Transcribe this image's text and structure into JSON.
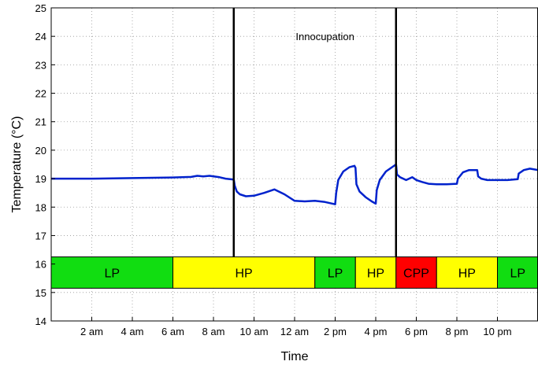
{
  "chart_data": {
    "type": "line",
    "title": "",
    "xlabel": "Time",
    "ylabel": "Temperature (°C)",
    "xlim": [
      0,
      24
    ],
    "ylim": [
      14,
      25
    ],
    "grid": true,
    "x_ticks": [
      {
        "value": 2,
        "label": "2 am"
      },
      {
        "value": 4,
        "label": "4 am"
      },
      {
        "value": 6,
        "label": "6 am"
      },
      {
        "value": 8,
        "label": "8 am"
      },
      {
        "value": 10,
        "label": "10 am"
      },
      {
        "value": 12,
        "label": "12 am"
      },
      {
        "value": 14,
        "label": "2 pm"
      },
      {
        "value": 16,
        "label": "4 pm"
      },
      {
        "value": 18,
        "label": "6 pm"
      },
      {
        "value": 20,
        "label": "8 pm"
      },
      {
        "value": 22,
        "label": "10 pm"
      }
    ],
    "y_ticks": [
      14,
      15,
      16,
      17,
      18,
      19,
      20,
      21,
      22,
      23,
      24,
      25
    ],
    "series": [
      {
        "color": "#0022cc",
        "x": [
          0,
          2,
          4,
          6,
          6.9,
          7.2,
          7.5,
          7.8,
          8.3,
          8.6,
          9.0,
          9.05,
          9.15,
          9.3,
          9.6,
          10.0,
          10.5,
          11.0,
          11.5,
          12.0,
          12.5,
          13.0,
          13.5,
          14.0,
          14.05,
          14.15,
          14.4,
          14.7,
          14.95,
          15.0,
          15.05,
          15.2,
          15.5,
          15.8,
          16.0,
          16.05,
          16.2,
          16.5,
          16.8,
          17.0,
          17.05,
          17.2,
          17.5,
          17.8,
          18.0,
          18.3,
          18.6,
          19.0,
          19.5,
          20.0,
          20.05,
          20.3,
          20.6,
          21.0,
          21.05,
          21.2,
          21.5,
          22.0,
          22.5,
          23.0,
          23.05,
          23.3,
          23.6,
          24.0
        ],
        "y": [
          19.0,
          19.0,
          19.02,
          19.04,
          19.06,
          19.1,
          19.08,
          19.1,
          19.05,
          19.0,
          18.97,
          18.75,
          18.55,
          18.45,
          18.38,
          18.4,
          18.5,
          18.62,
          18.45,
          18.22,
          18.2,
          18.22,
          18.18,
          18.1,
          18.5,
          18.95,
          19.25,
          19.4,
          19.45,
          19.38,
          18.8,
          18.55,
          18.35,
          18.2,
          18.12,
          18.6,
          18.95,
          19.25,
          19.4,
          19.5,
          19.15,
          19.05,
          18.95,
          19.05,
          18.95,
          18.88,
          18.82,
          18.8,
          18.8,
          18.82,
          19.0,
          19.22,
          19.3,
          19.3,
          19.08,
          19.0,
          18.95,
          18.95,
          18.95,
          18.98,
          19.18,
          19.3,
          19.35,
          19.3
        ]
      }
    ],
    "vertical_lines": [
      9.0,
      17.0
    ],
    "annotation": {
      "text": "Innocupation",
      "x": 13.5,
      "y": 24.0
    },
    "bands": {
      "y_low": 15.15,
      "y_high": 16.25,
      "segments": [
        {
          "start": 0,
          "end": 6,
          "label": "LP",
          "color": "#11dd11"
        },
        {
          "start": 6,
          "end": 13,
          "label": "HP",
          "color": "#ffff00"
        },
        {
          "start": 13,
          "end": 15,
          "label": "LP",
          "color": "#11dd11"
        },
        {
          "start": 15,
          "end": 17,
          "label": "HP",
          "color": "#ffff00"
        },
        {
          "start": 17,
          "end": 19,
          "label": "CPP",
          "color": "#ff0000"
        },
        {
          "start": 19,
          "end": 22,
          "label": "HP",
          "color": "#ffff00"
        },
        {
          "start": 22,
          "end": 24,
          "label": "LP",
          "color": "#11dd11"
        }
      ]
    }
  }
}
